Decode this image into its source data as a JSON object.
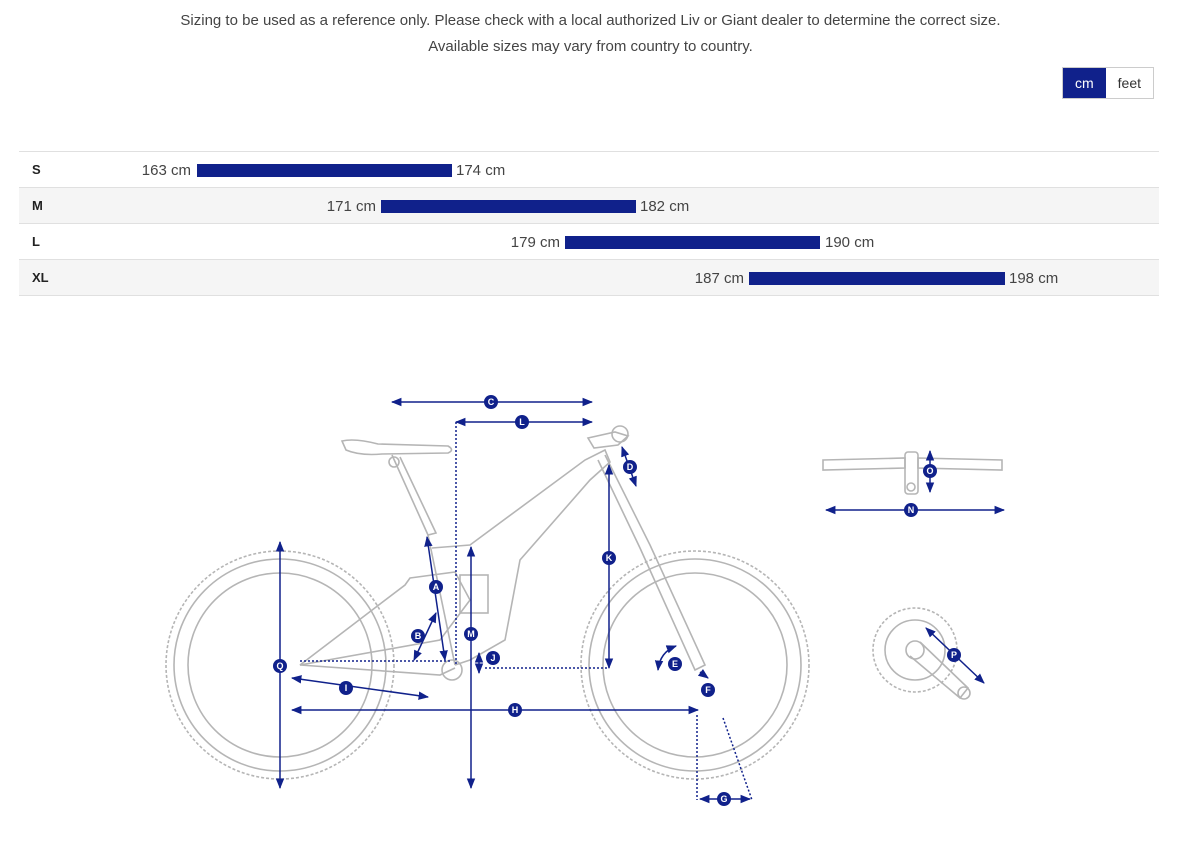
{
  "notice": {
    "line1": "Sizing to be used as a reference only. Please check with a local authorized Liv or Giant dealer to determine the correct size.",
    "line2": "Available sizes may vary from country to country."
  },
  "units": {
    "cm": "cm",
    "feet": "feet",
    "selected": "cm"
  },
  "sizes": [
    {
      "label": "S",
      "min": "163 cm",
      "max": "174 cm"
    },
    {
      "label": "M",
      "min": "171 cm",
      "max": "182 cm"
    },
    {
      "label": "L",
      "min": "179 cm",
      "max": "190 cm"
    },
    {
      "label": "XL",
      "min": "187 cm",
      "max": "198 cm"
    }
  ],
  "diagram_labels": [
    "A",
    "B",
    "C",
    "D",
    "E",
    "F",
    "G",
    "H",
    "I",
    "J",
    "K",
    "L",
    "M",
    "N",
    "O",
    "P",
    "Q"
  ],
  "colors": {
    "accent": "#10218b",
    "line": "#bbbbbb"
  }
}
